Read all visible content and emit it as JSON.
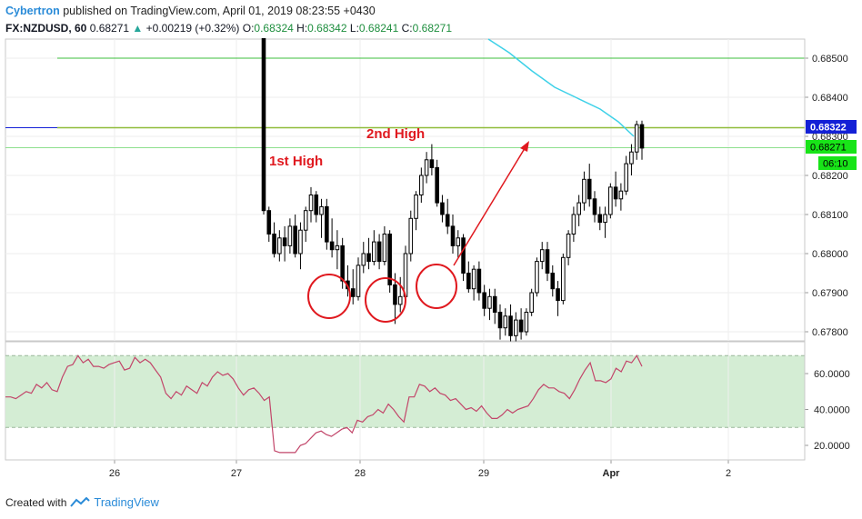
{
  "header": {
    "author": "Cybertron",
    "published_text": "published on TradingView.com, April 01, 2019 08:23:55 +0430",
    "symbol": "FX:NZDUSD, 60",
    "last": "0.68271",
    "change": "+0.00219 (+0.32%)",
    "o_label": "O:",
    "o_value": "0.68324",
    "h_label": "H:",
    "h_value": "0.68342",
    "l_label": "L:",
    "l_value": "0.68241",
    "c_label": "C:",
    "c_value": "0.68271"
  },
  "footer": {
    "created_with": "Created with",
    "brand": "TradingView"
  },
  "price_badges": {
    "current": "0.68322",
    "last": "0.68271",
    "countdown": "06:10"
  },
  "colors": {
    "bull_candle": "#ffffff",
    "bear_candle": "#000000",
    "green_line": "#3cbf3c",
    "olive_line": "#8fbc3a",
    "ma_line": "#3ed1e8",
    "annotation_red": "#e0191f",
    "rsi_line": "#c2466a",
    "rsi_band": "#d4edd4",
    "blue_badge": "#1320d6",
    "green_badge": "#18e418"
  },
  "annotations": {
    "first_high": "1st High",
    "second_high": "2nd High"
  },
  "chart_data": [
    {
      "type": "candlestick",
      "symbol": "FX:NZDUSD",
      "interval": "60",
      "ylim": [
        0.6776,
        0.6855
      ],
      "y_ticks": [
        "0.68500",
        "0.68400",
        "0.68300",
        "0.68200",
        "0.68100",
        "0.68000",
        "0.67900",
        "0.67800"
      ],
      "x_ticks": [
        "26",
        "27",
        "28",
        "29",
        "Apr",
        "2"
      ],
      "horizontal_lines": [
        0.685,
        0.68322,
        0.68271
      ],
      "candles": [
        [
          0.6855,
          0.6855,
          0.681,
          0.6811
        ],
        [
          0.6811,
          0.6812,
          0.6803,
          0.6805
        ],
        [
          0.6805,
          0.6808,
          0.6799,
          0.68
        ],
        [
          0.68,
          0.6806,
          0.6798,
          0.6804
        ],
        [
          0.6804,
          0.6807,
          0.6798,
          0.6802
        ],
        [
          0.6802,
          0.6809,
          0.68,
          0.6807
        ],
        [
          0.6807,
          0.681,
          0.6799,
          0.68
        ],
        [
          0.68,
          0.6808,
          0.6796,
          0.6806
        ],
        [
          0.6806,
          0.6812,
          0.6803,
          0.6811
        ],
        [
          0.6811,
          0.6817,
          0.6808,
          0.6815
        ],
        [
          0.6815,
          0.6816,
          0.6808,
          0.681
        ],
        [
          0.681,
          0.6814,
          0.6804,
          0.6812
        ],
        [
          0.6812,
          0.6814,
          0.6801,
          0.6803
        ],
        [
          0.6803,
          0.6809,
          0.6799,
          0.6801
        ],
        [
          0.6801,
          0.6806,
          0.6796,
          0.6802
        ],
        [
          0.6802,
          0.6804,
          0.6791,
          0.6793
        ],
        [
          0.6793,
          0.6797,
          0.6789,
          0.6791
        ],
        [
          0.6791,
          0.6796,
          0.6787,
          0.6789
        ],
        [
          0.6789,
          0.6799,
          0.6788,
          0.6797
        ],
        [
          0.6797,
          0.6803,
          0.6795,
          0.68
        ],
        [
          0.68,
          0.6804,
          0.6796,
          0.6798
        ],
        [
          0.6798,
          0.6806,
          0.6797,
          0.6803
        ],
        [
          0.6803,
          0.6805,
          0.6796,
          0.6798
        ],
        [
          0.6798,
          0.6807,
          0.6797,
          0.6805
        ],
        [
          0.6805,
          0.6806,
          0.679,
          0.6792
        ],
        [
          0.6792,
          0.6795,
          0.6782,
          0.6787
        ],
        [
          0.6787,
          0.6794,
          0.6785,
          0.6789
        ],
        [
          0.6789,
          0.6802,
          0.6788,
          0.68
        ],
        [
          0.68,
          0.6811,
          0.6798,
          0.6809
        ],
        [
          0.6809,
          0.6816,
          0.6806,
          0.6815
        ],
        [
          0.6815,
          0.6822,
          0.6813,
          0.682
        ],
        [
          0.682,
          0.6826,
          0.6818,
          0.6824
        ],
        [
          0.6824,
          0.6828,
          0.682,
          0.6822
        ],
        [
          0.6822,
          0.6824,
          0.6812,
          0.6813
        ],
        [
          0.6813,
          0.6815,
          0.6808,
          0.681
        ],
        [
          0.681,
          0.6814,
          0.6805,
          0.6807
        ],
        [
          0.6807,
          0.681,
          0.68,
          0.6802
        ],
        [
          0.6802,
          0.6806,
          0.6799,
          0.6804
        ],
        [
          0.6804,
          0.6805,
          0.6793,
          0.6795
        ],
        [
          0.6795,
          0.6798,
          0.679,
          0.6791
        ],
        [
          0.6791,
          0.6797,
          0.6788,
          0.6796
        ],
        [
          0.6796,
          0.6798,
          0.6788,
          0.679
        ],
        [
          0.679,
          0.6792,
          0.6784,
          0.6786
        ],
        [
          0.6786,
          0.6791,
          0.6783,
          0.6789
        ],
        [
          0.6789,
          0.6791,
          0.6782,
          0.6785
        ],
        [
          0.6785,
          0.6787,
          0.6778,
          0.6781
        ],
        [
          0.6781,
          0.6786,
          0.6779,
          0.6784
        ],
        [
          0.6784,
          0.6787,
          0.6777,
          0.6779
        ],
        [
          0.6779,
          0.6785,
          0.6777,
          0.6783
        ],
        [
          0.6783,
          0.6786,
          0.6778,
          0.678
        ],
        [
          0.678,
          0.6786,
          0.6779,
          0.6785
        ],
        [
          0.6785,
          0.6791,
          0.6784,
          0.679
        ],
        [
          0.679,
          0.6799,
          0.6789,
          0.6798
        ],
        [
          0.6798,
          0.6803,
          0.6796,
          0.6801
        ],
        [
          0.6801,
          0.6803,
          0.6793,
          0.6795
        ],
        [
          0.6795,
          0.6797,
          0.6789,
          0.6791
        ],
        [
          0.6791,
          0.6793,
          0.6784,
          0.6788
        ],
        [
          0.6788,
          0.68,
          0.6787,
          0.6799
        ],
        [
          0.6799,
          0.6806,
          0.6797,
          0.6805
        ],
        [
          0.6805,
          0.6812,
          0.6803,
          0.681
        ],
        [
          0.681,
          0.6815,
          0.6807,
          0.6813
        ],
        [
          0.6813,
          0.6821,
          0.6811,
          0.6819
        ],
        [
          0.6819,
          0.6823,
          0.6812,
          0.6814
        ],
        [
          0.6814,
          0.6816,
          0.6808,
          0.681
        ],
        [
          0.681,
          0.6812,
          0.6806,
          0.6808
        ],
        [
          0.6808,
          0.6812,
          0.6804,
          0.681
        ],
        [
          0.681,
          0.6818,
          0.6809,
          0.6817
        ],
        [
          0.6817,
          0.6821,
          0.6812,
          0.6814
        ],
        [
          0.6814,
          0.6818,
          0.6811,
          0.6816
        ],
        [
          0.6816,
          0.6825,
          0.6815,
          0.6823
        ],
        [
          0.6823,
          0.6828,
          0.682,
          0.6826
        ],
        [
          0.6826,
          0.6834,
          0.6824,
          0.6833
        ],
        [
          0.6833,
          0.6834,
          0.6824,
          0.6827
        ]
      ]
    },
    {
      "type": "line",
      "name": "RSI",
      "ylim": [
        13,
        74
      ],
      "y_ticks": [
        "60.0000",
        "40.0000",
        "20.0000"
      ],
      "band": [
        30,
        70
      ],
      "values": [
        47,
        47,
        46,
        48,
        50,
        49,
        54,
        52,
        55,
        51,
        50,
        58,
        64,
        65,
        70,
        66,
        68,
        64,
        64,
        63,
        65,
        66,
        67,
        62,
        63,
        69,
        66,
        68,
        66,
        62,
        58,
        49,
        46,
        50,
        48,
        53,
        51,
        49,
        55,
        53,
        58,
        61,
        59,
        60,
        57,
        52,
        48,
        51,
        52,
        49,
        45,
        47,
        17,
        16,
        16,
        16,
        16,
        20,
        21,
        24,
        27,
        28,
        26,
        25,
        27,
        29,
        30,
        27,
        34,
        33,
        36,
        37,
        40,
        38,
        43,
        40,
        36,
        33,
        47,
        47,
        54,
        53,
        50,
        52,
        49,
        48,
        45,
        46,
        43,
        40,
        41,
        39,
        42,
        38,
        35,
        35,
        37,
        40,
        38,
        40,
        41,
        42,
        46,
        51,
        54,
        52,
        52,
        50,
        49,
        46,
        51,
        57,
        62,
        66,
        56,
        56,
        55,
        57,
        63,
        61,
        67,
        66,
        70,
        64
      ]
    }
  ]
}
